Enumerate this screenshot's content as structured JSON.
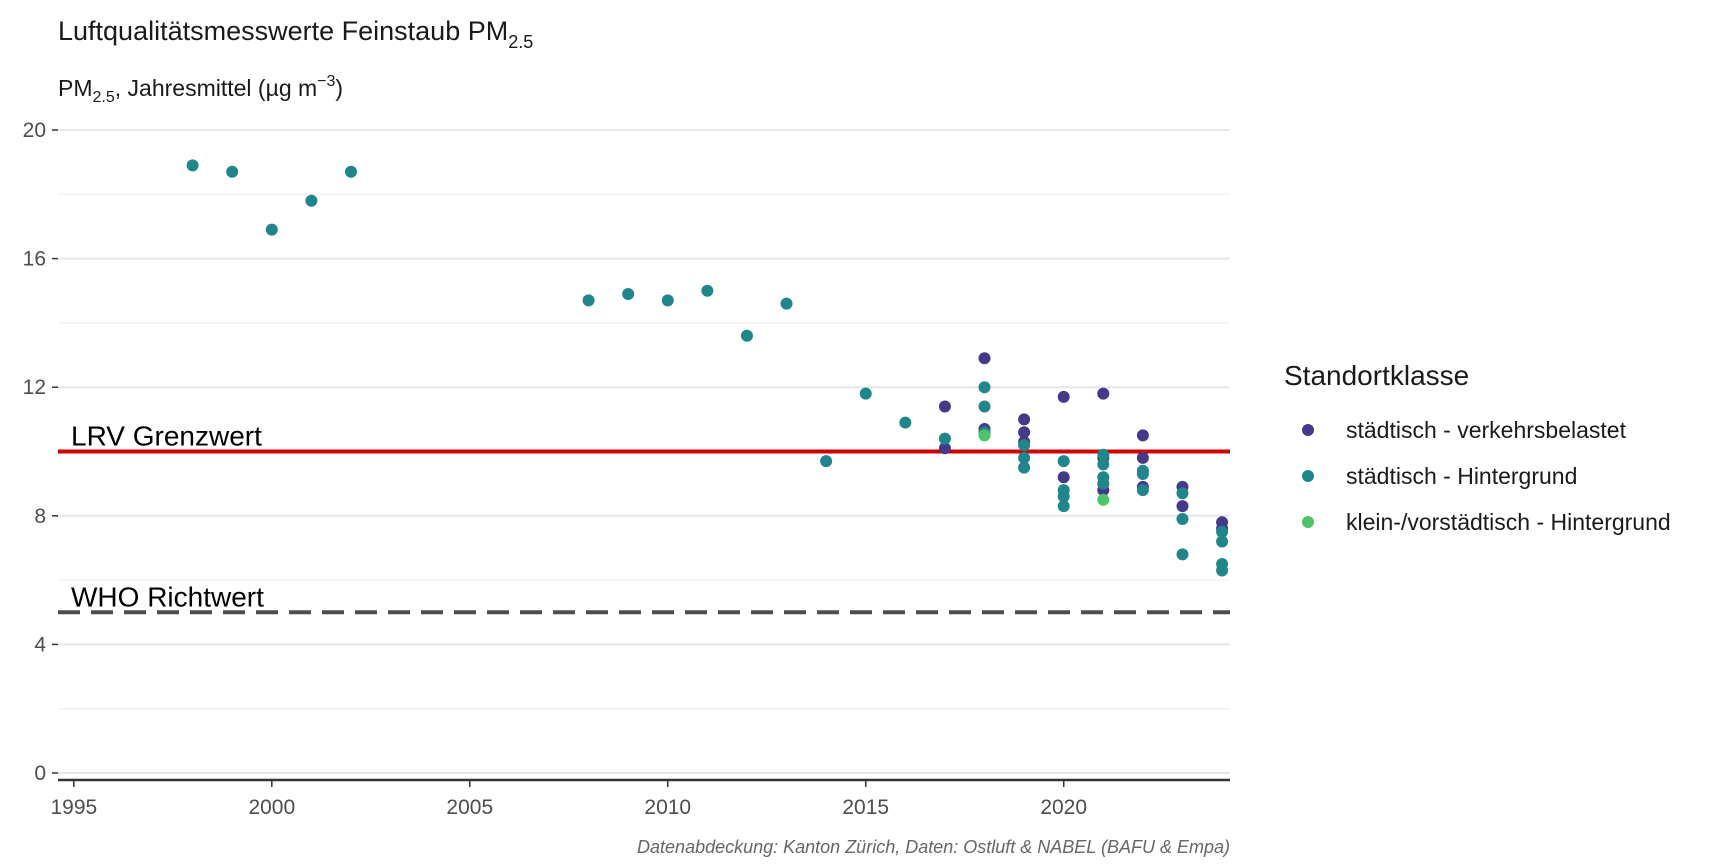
{
  "chart_data": {
    "type": "scatter",
    "title": {
      "main": "Luftqualitätsmesswerte Feinstaub PM",
      "sub": "2.5"
    },
    "subtitle": {
      "pre": "PM",
      "sub": "2.5",
      "mid": ", Jahresmittel (µg m",
      "sup": "−3",
      "post": ")"
    },
    "x_ticks": [
      "1995",
      "2000",
      "2005",
      "2010",
      "2015",
      "2020"
    ],
    "y_ticks": [
      "0",
      "4",
      "8",
      "12",
      "16",
      "20"
    ],
    "xlim": [
      1994.6,
      2024.2
    ],
    "ylim": [
      0,
      20
    ],
    "grid": true,
    "reference_lines": [
      {
        "label": "LRV Grenzwert",
        "value": 10,
        "style": "solid",
        "color": "#d10000"
      },
      {
        "label": "WHO Richtwert",
        "value": 5,
        "style": "dashed",
        "color": "#4d4d4d"
      }
    ],
    "legend": {
      "title": "Standortklasse",
      "position": "right",
      "items": [
        {
          "label": "städtisch - verkehrsbelastet",
          "color": "#46398a"
        },
        {
          "label": "städtisch - Hintergrund",
          "color": "#21868c"
        },
        {
          "label": "klein-/vorstädtisch - Hintergrund",
          "color": "#4cc56a"
        }
      ]
    },
    "series": [
      {
        "name": "städtisch - verkehrsbelastet",
        "color": "#46398a",
        "points": [
          [
            2017,
            11.4
          ],
          [
            2017,
            10.1
          ],
          [
            2018,
            12.9
          ],
          [
            2018,
            10.7
          ],
          [
            2019,
            11.0
          ],
          [
            2019,
            10.6
          ],
          [
            2019,
            10.3
          ],
          [
            2020,
            11.7
          ],
          [
            2020,
            9.2
          ],
          [
            2021,
            11.8
          ],
          [
            2021,
            9.8
          ],
          [
            2021,
            8.8
          ],
          [
            2022,
            10.5
          ],
          [
            2022,
            9.8
          ],
          [
            2022,
            8.9
          ],
          [
            2023,
            8.9
          ],
          [
            2023,
            8.3
          ],
          [
            2024,
            7.8
          ],
          [
            2024,
            7.6
          ]
        ]
      },
      {
        "name": "städtisch - Hintergrund",
        "color": "#21868c",
        "points": [
          [
            1998,
            18.9
          ],
          [
            1999,
            18.7
          ],
          [
            2000,
            16.9
          ],
          [
            2001,
            17.8
          ],
          [
            2002,
            18.7
          ],
          [
            2008,
            14.7
          ],
          [
            2009,
            14.9
          ],
          [
            2010,
            14.7
          ],
          [
            2011,
            15.0
          ],
          [
            2012,
            13.6
          ],
          [
            2013,
            14.6
          ],
          [
            2014,
            9.7
          ],
          [
            2015,
            11.8
          ],
          [
            2016,
            10.9
          ],
          [
            2017,
            10.4
          ],
          [
            2018,
            12.0
          ],
          [
            2018,
            11.4
          ],
          [
            2018,
            10.6
          ],
          [
            2019,
            10.2
          ],
          [
            2019,
            9.8
          ],
          [
            2019,
            9.5
          ],
          [
            2020,
            9.7
          ],
          [
            2020,
            8.8
          ],
          [
            2020,
            8.6
          ],
          [
            2020,
            8.3
          ],
          [
            2021,
            9.9
          ],
          [
            2021,
            9.6
          ],
          [
            2021,
            9.2
          ],
          [
            2021,
            9.0
          ],
          [
            2022,
            9.4
          ],
          [
            2022,
            9.3
          ],
          [
            2022,
            8.8
          ],
          [
            2023,
            8.7
          ],
          [
            2023,
            7.9
          ],
          [
            2023,
            6.8
          ],
          [
            2024,
            7.5
          ],
          [
            2024,
            7.2
          ],
          [
            2024,
            6.5
          ],
          [
            2024,
            6.3
          ]
        ]
      },
      {
        "name": "klein-/vorstädtisch - Hintergrund",
        "color": "#4cc56a",
        "points": [
          [
            2018,
            10.5
          ],
          [
            2021,
            8.5
          ]
        ]
      }
    ],
    "caption": "Datenabdeckung: Kanton Zürich, Daten: Ostluft & NABEL (BAFU & Empa)"
  }
}
